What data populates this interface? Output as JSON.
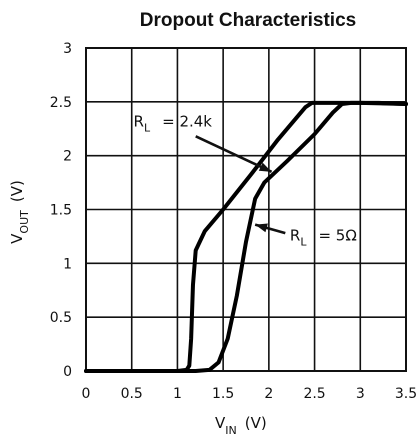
{
  "chart_data": {
    "type": "line",
    "title": "Dropout Characteristics",
    "xlabel": {
      "main": "V",
      "sub": "IN",
      "unit": "(V)"
    },
    "ylabel": {
      "main": "V",
      "sub": "OUT",
      "unit": "(V)"
    },
    "xlim": [
      0,
      3.5
    ],
    "ylim": [
      0,
      3
    ],
    "x_ticks": [
      "0",
      "0.5",
      "1",
      "1.5",
      "2",
      "2.5",
      "3",
      "3.5"
    ],
    "y_ticks": [
      "0",
      "0.5",
      "1",
      "1.5",
      "2",
      "2.5",
      "3"
    ],
    "grid": true,
    "series": [
      {
        "name": "RL = 2.4k",
        "label_main": "R",
        "label_sub": "L",
        "label_value": "= 2.4k",
        "color": "#000000",
        "x": [
          0,
          1.0,
          1.1,
          1.13,
          1.15,
          1.17,
          1.2,
          1.3,
          1.5,
          1.8,
          2.1,
          2.4,
          2.47,
          2.6,
          3.0,
          3.5
        ],
        "y": [
          0,
          0,
          0.01,
          0.05,
          0.3,
          0.8,
          1.12,
          1.3,
          1.5,
          1.82,
          2.15,
          2.45,
          2.49,
          2.49,
          2.49,
          2.48
        ]
      },
      {
        "name": "RL = 5Ω",
        "label_main": "R",
        "label_sub": "L",
        "label_value": "= 5Ω",
        "color": "#000000",
        "x": [
          0,
          1.2,
          1.35,
          1.45,
          1.55,
          1.65,
          1.75,
          1.85,
          1.95,
          2.2,
          2.5,
          2.7,
          2.8,
          2.9,
          3.2,
          3.5
        ],
        "y": [
          0,
          0,
          0.01,
          0.08,
          0.3,
          0.7,
          1.2,
          1.6,
          1.75,
          1.95,
          2.2,
          2.4,
          2.48,
          2.49,
          2.49,
          2.48
        ]
      }
    ]
  }
}
